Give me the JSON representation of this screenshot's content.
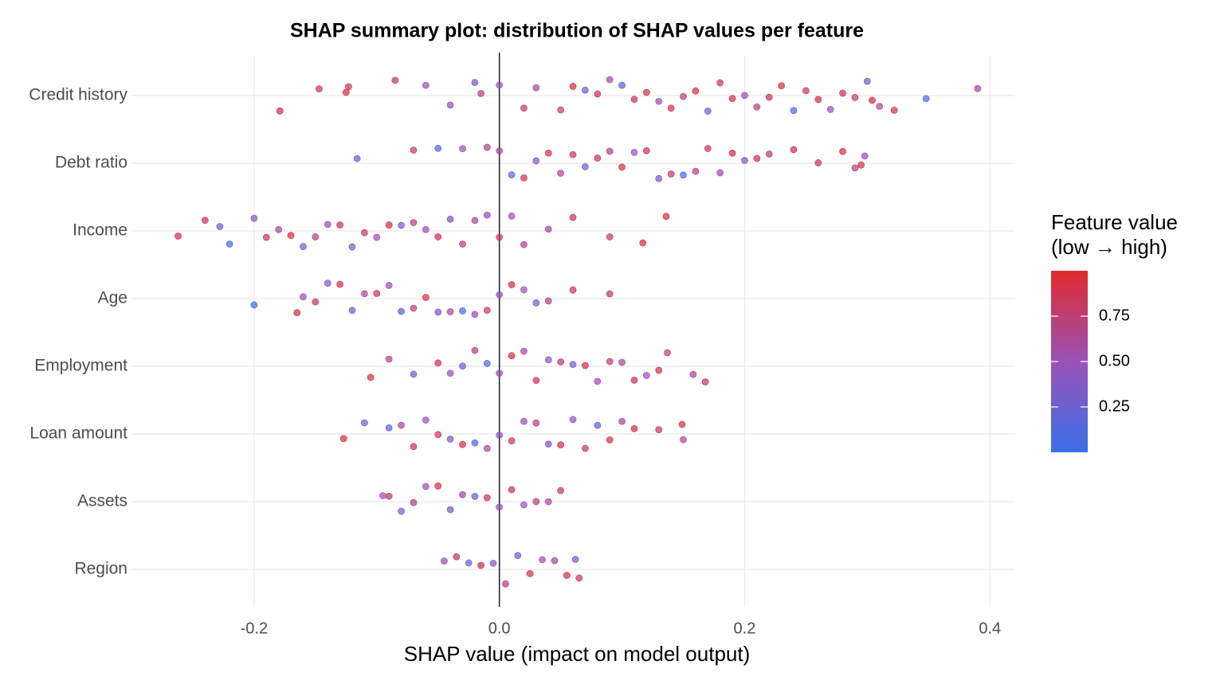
{
  "chart_data": {
    "type": "beeswarm",
    "title": "SHAP summary plot: distribution of SHAP values per feature",
    "x_label": "SHAP value (impact on model output)",
    "xlim": [
      -0.3,
      0.42
    ],
    "xticks": [
      -0.2,
      {
        "value": 0,
        "label": "0.0"
      },
      0.2,
      0.4
    ],
    "grid": true,
    "zero_line": true,
    "legend_title": [
      "Feature value",
      "(low → high)"
    ],
    "legend_position": "right",
    "colors": [
      "#3a6fe8",
      "#9a52b8",
      "#e02a2e"
    ],
    "clim": [
      0,
      1
    ],
    "cticks": [
      0.25,
      {
        "value": 0.5,
        "label": "0.50"
      },
      0.75
    ],
    "features": [
      {
        "name": "Credit history",
        "shap": [
          -0.179,
          -0.147,
          -0.125,
          -0.123,
          -0.085,
          -0.06,
          -0.04,
          -0.02,
          -0.015,
          0,
          0.02,
          0.03,
          0.05,
          0.06,
          0.07,
          0.08,
          0.09,
          0.1,
          0.11,
          0.12,
          0.13,
          0.14,
          0.15,
          0.16,
          0.17,
          0.18,
          0.19,
          0.2,
          0.21,
          0.22,
          0.23,
          0.24,
          0.25,
          0.26,
          0.27,
          0.28,
          0.29,
          0.3,
          0.304,
          0.31,
          0.322,
          0.348,
          0.39
        ],
        "feature_value": [
          0.9,
          0.85,
          0.9,
          0.85,
          0.8,
          0.5,
          0.4,
          0.35,
          0.7,
          0.5,
          0.8,
          0.6,
          0.75,
          0.9,
          0.3,
          0.85,
          0.6,
          0.15,
          0.8,
          0.9,
          0.5,
          0.85,
          0.7,
          0.9,
          0.3,
          0.8,
          0.9,
          0.55,
          0.7,
          0.85,
          0.9,
          0.1,
          0.8,
          0.9,
          0.5,
          0.85,
          0.75,
          0.35,
          0.9,
          0.6,
          0.85,
          0.1,
          0.6
        ]
      },
      {
        "name": "Debt ratio",
        "shap": [
          -0.116,
          -0.07,
          -0.05,
          -0.03,
          -0.01,
          0,
          0.01,
          0.02,
          0.03,
          0.04,
          0.05,
          0.06,
          0.07,
          0.08,
          0.09,
          0.1,
          0.11,
          0.12,
          0.13,
          0.14,
          0.15,
          0.16,
          0.17,
          0.18,
          0.19,
          0.2,
          0.21,
          0.22,
          0.24,
          0.26,
          0.28,
          0.29,
          0.295,
          0.298
        ],
        "feature_value": [
          0.3,
          0.8,
          0.2,
          0.5,
          0.7,
          0.6,
          0.2,
          0.85,
          0.4,
          0.9,
          0.6,
          0.8,
          0.3,
          0.85,
          0.7,
          0.9,
          0.5,
          0.85,
          0.3,
          0.8,
          0.1,
          0.7,
          0.85,
          0.6,
          0.9,
          0.4,
          0.85,
          0.7,
          0.9,
          0.8,
          0.85,
          0.7,
          0.9,
          0.5
        ]
      },
      {
        "name": "Income",
        "shap": [
          -0.262,
          -0.24,
          -0.228,
          -0.22,
          -0.2,
          -0.19,
          -0.18,
          -0.17,
          -0.16,
          -0.15,
          -0.14,
          -0.13,
          -0.12,
          -0.11,
          -0.1,
          -0.09,
          -0.08,
          -0.07,
          -0.06,
          -0.05,
          -0.04,
          -0.03,
          -0.02,
          -0.01,
          0,
          0.01,
          0.02,
          0.04,
          0.06,
          0.09,
          0.117,
          0.136
        ],
        "feature_value": [
          0.9,
          0.85,
          0.3,
          0.1,
          0.4,
          0.8,
          0.6,
          0.9,
          0.3,
          0.7,
          0.5,
          0.85,
          0.35,
          0.8,
          0.5,
          0.9,
          0.3,
          0.7,
          0.5,
          0.85,
          0.4,
          0.7,
          0.6,
          0.5,
          0.8,
          0.5,
          0.7,
          0.6,
          0.85,
          0.8,
          0.9,
          0.9
        ]
      },
      {
        "name": "Age",
        "shap": [
          -0.2,
          -0.165,
          -0.16,
          -0.15,
          -0.14,
          -0.13,
          -0.12,
          -0.11,
          -0.1,
          -0.09,
          -0.08,
          -0.07,
          -0.06,
          -0.05,
          -0.04,
          -0.03,
          -0.02,
          -0.01,
          0,
          0.01,
          0.02,
          0.03,
          0.04,
          0.06,
          0.09
        ],
        "feature_value": [
          0.05,
          0.85,
          0.5,
          0.8,
          0.4,
          0.9,
          0.3,
          0.6,
          0.85,
          0.5,
          0.2,
          0.7,
          0.9,
          0.3,
          0.6,
          0.1,
          0.5,
          0.8,
          0.4,
          0.9,
          0.5,
          0.3,
          0.7,
          0.85,
          0.75
        ]
      },
      {
        "name": "Employment",
        "shap": [
          -0.105,
          -0.09,
          -0.07,
          -0.05,
          -0.04,
          -0.03,
          -0.02,
          -0.01,
          0,
          0.01,
          0.02,
          0.03,
          0.04,
          0.05,
          0.06,
          0.07,
          0.08,
          0.09,
          0.1,
          0.11,
          0.12,
          0.13,
          0.137,
          0.158,
          0.168
        ],
        "feature_value": [
          0.9,
          0.7,
          0.2,
          0.85,
          0.5,
          0.3,
          0.7,
          0.1,
          0.5,
          0.9,
          0.6,
          0.85,
          0.4,
          0.8,
          0.3,
          0.9,
          0.5,
          0.75,
          0.6,
          0.85,
          0.5,
          0.9,
          0.7,
          0.6,
          0.8
        ]
      },
      {
        "name": "Loan amount",
        "shap": [
          -0.127,
          -0.11,
          -0.09,
          -0.08,
          -0.07,
          -0.06,
          -0.05,
          -0.04,
          -0.03,
          -0.02,
          -0.01,
          0,
          0.01,
          0.02,
          0.03,
          0.04,
          0.05,
          0.06,
          0.07,
          0.08,
          0.09,
          0.1,
          0.11,
          0.13,
          0.149,
          0.15
        ],
        "feature_value": [
          0.9,
          0.3,
          0.2,
          0.6,
          0.85,
          0.5,
          0.8,
          0.3,
          0.9,
          0.15,
          0.6,
          0.4,
          0.85,
          0.5,
          0.7,
          0.3,
          0.9,
          0.5,
          0.8,
          0.2,
          0.85,
          0.6,
          0.9,
          0.8,
          0.85,
          0.6
        ]
      },
      {
        "name": "Assets",
        "shap": [
          -0.095,
          -0.09,
          -0.08,
          -0.07,
          -0.06,
          -0.05,
          -0.04,
          -0.03,
          -0.02,
          -0.01,
          0,
          0.01,
          0.02,
          0.03,
          0.04,
          0.05
        ],
        "feature_value": [
          0.5,
          0.8,
          0.3,
          0.7,
          0.5,
          0.9,
          0.3,
          0.6,
          0.2,
          0.8,
          0.5,
          0.85,
          0.4,
          0.7,
          0.6,
          0.8
        ]
      },
      {
        "name": "Region",
        "shap": [
          -0.045,
          -0.035,
          -0.025,
          -0.015,
          -0.005,
          0.005,
          0.015,
          0.025,
          0.035,
          0.045,
          0.055,
          0.062,
          0.065
        ],
        "feature_value": [
          0.5,
          0.8,
          0.3,
          0.9,
          0.4,
          0.7,
          0.2,
          0.85,
          0.5,
          0.6,
          0.9,
          0.4,
          0.8
        ]
      }
    ]
  }
}
